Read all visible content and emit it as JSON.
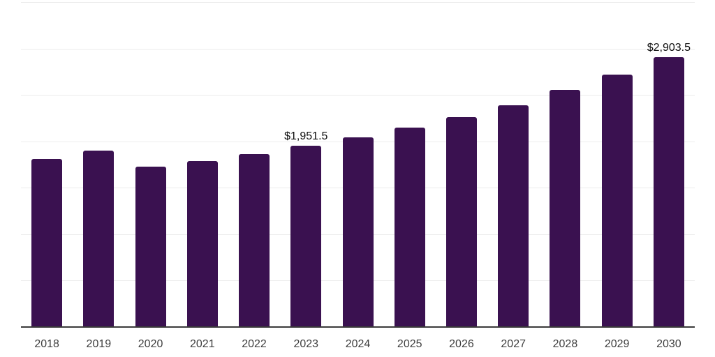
{
  "chart_data": {
    "type": "bar",
    "title": "",
    "xlabel": "",
    "ylabel": "",
    "categories": [
      "2018",
      "2019",
      "2020",
      "2021",
      "2022",
      "2023",
      "2024",
      "2025",
      "2026",
      "2027",
      "2028",
      "2029",
      "2030"
    ],
    "values": [
      1810,
      1900,
      1725,
      1790,
      1860,
      1951.5,
      2040,
      2145,
      2260,
      2390,
      2550,
      2720,
      2903.5
    ],
    "value_labels": {
      "2023": "$1,951.5",
      "2030": "$2,903.5"
    },
    "ylim": [
      0,
      3500
    ],
    "grid_step": 500,
    "grid": true,
    "legend": false,
    "y_axis_tick_labels_visible": false,
    "colors": {
      "bar": "#3a1150",
      "gridline": "#ececec",
      "axis_line": "#3a3a3a",
      "tick_label": "#3f3f3f",
      "value_label": "#0d0d0d",
      "background": "#ffffff"
    }
  }
}
